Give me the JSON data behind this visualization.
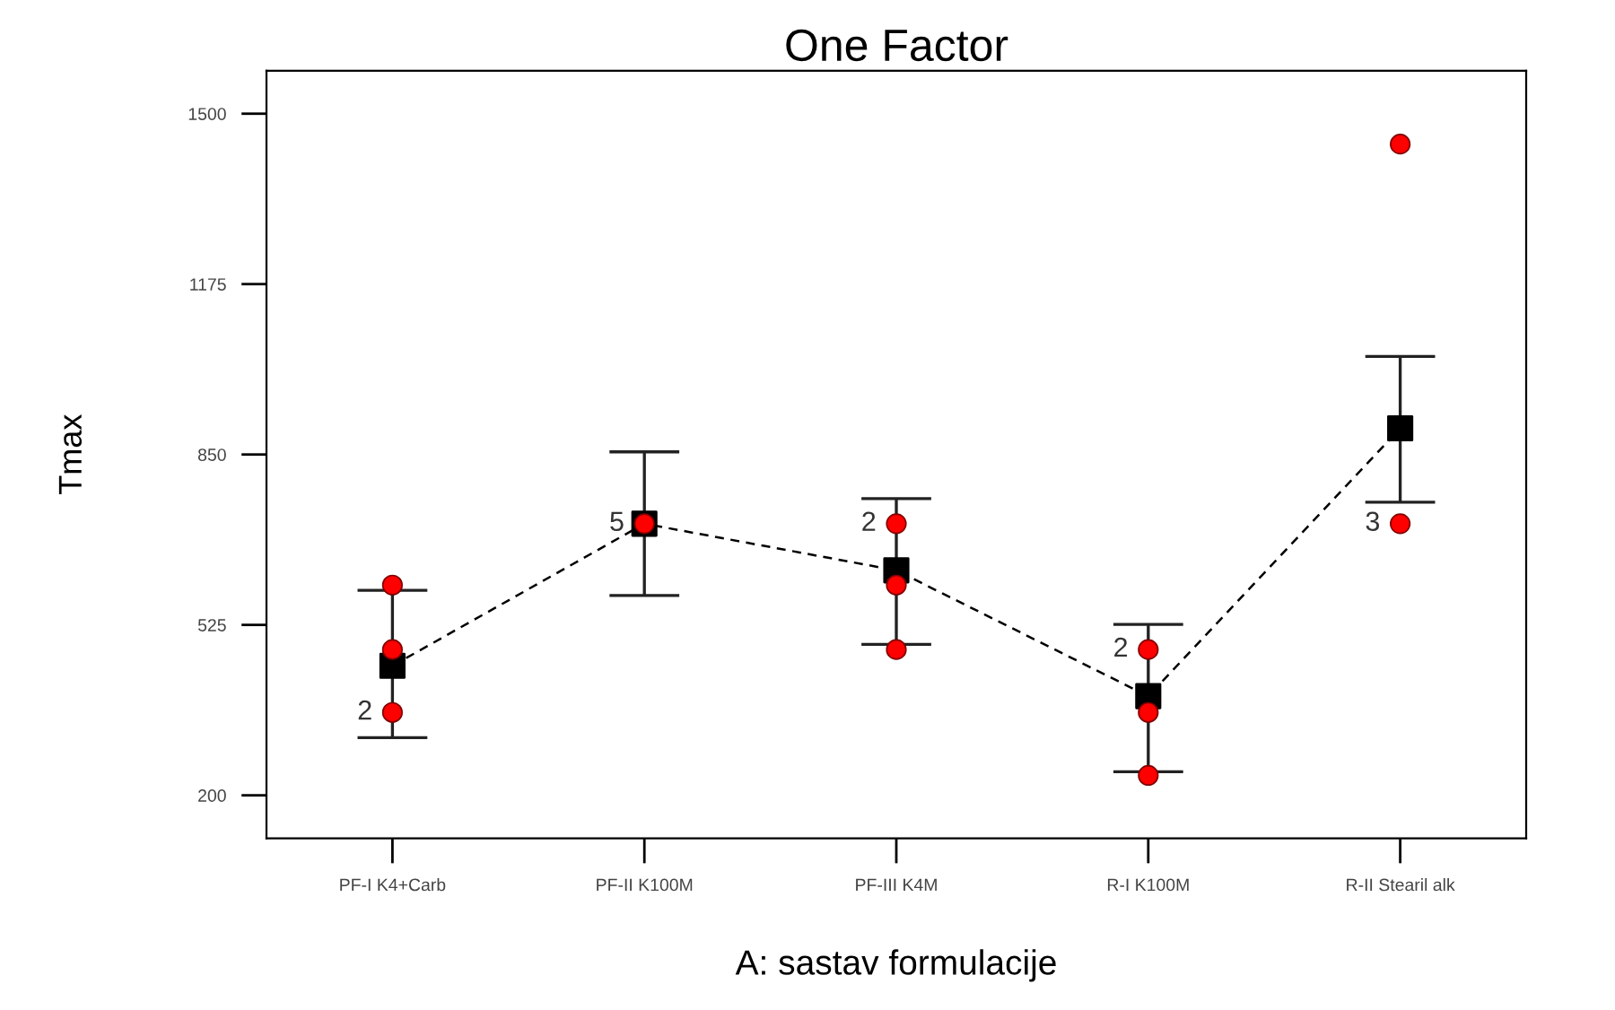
{
  "chart_data": {
    "type": "line",
    "title": "One Factor",
    "xlabel": "A: sastav formulacije",
    "ylabel": "Tmax",
    "categories": [
      "PF-I K4+Carb",
      "PF-II K100M",
      "PF-III K4M",
      "R-I K100M",
      "R-II Stearil alk"
    ],
    "series": [
      {
        "color": "#000000",
        "marker": "square",
        "line_style": "dashed",
        "values": [
          447,
          718,
          629,
          389,
          900
        ],
        "errors": [
          [
            310,
            591
          ],
          [
            581,
            855
          ],
          [
            488,
            766
          ],
          [
            245,
            526
          ],
          [
            759,
            1037
          ]
        ]
      },
      {
        "type": "scatter",
        "color": "#ff0000",
        "marker": "circle",
        "x": [
          "PF-I K4+Carb",
          "PF-I K4+Carb",
          "PF-I K4+Carb",
          "PF-II K100M",
          "PF-III K4M",
          "PF-III K4M",
          "PF-III K4M",
          "R-I K100M",
          "R-I K100M",
          "R-I K100M",
          "R-II Stearil alk",
          "R-II Stearil alk"
        ],
        "values": [
          601,
          478,
          358,
          718,
          718,
          601,
          478,
          478,
          358,
          238,
          1442,
          718
        ]
      }
    ],
    "annotations": [
      {
        "text": "2",
        "x": "PF-I K4+Carb",
        "y": 358
      },
      {
        "text": "5",
        "x": "PF-II K100M",
        "y": 718
      },
      {
        "text": "2",
        "x": "PF-III K4M",
        "y": 718
      },
      {
        "text": "2",
        "x": "R-I K100M",
        "y": 478
      },
      {
        "text": "3",
        "x": "R-II Stearil alk",
        "y": 718
      }
    ],
    "ylim": [
      118,
      1582
    ],
    "yticks": [
      200,
      525,
      850,
      1175,
      1500
    ],
    "grid": false,
    "legend": false
  }
}
